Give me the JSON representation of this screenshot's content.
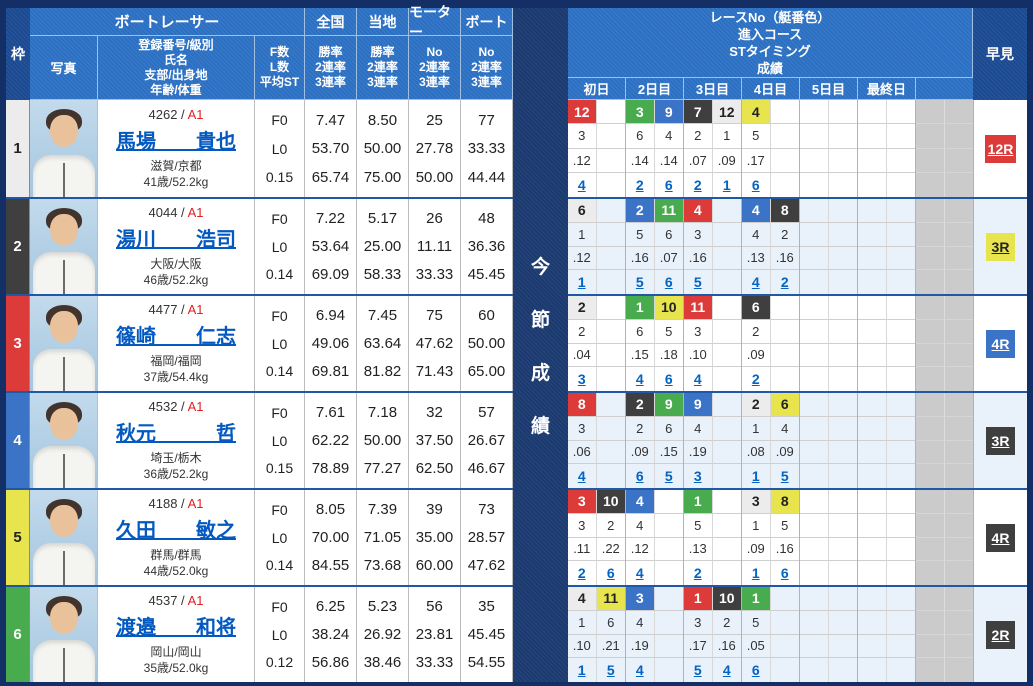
{
  "colors": {
    "boat": {
      "1": {
        "bg": "#ececec",
        "fg": "#222222"
      },
      "2": {
        "bg": "#3f3f3f",
        "fg": "#ffffff"
      },
      "3": {
        "bg": "#dd3a3a",
        "fg": "#ffffff"
      },
      "4": {
        "bg": "#3b74c6",
        "fg": "#ffffff"
      },
      "5": {
        "bg": "#e8e44e",
        "fg": "#222222"
      },
      "6": {
        "bg": "#48ab4d",
        "fg": "#ffffff"
      }
    },
    "link": "#0563c1",
    "header_blue": "#2b70c2",
    "dark_navy": "#132f66",
    "class_red": "#e01f1f",
    "alt_row": "#e9f1fb",
    "gray_cell": "#cbcbcb"
  },
  "header": {
    "waku": "枠",
    "racer_group": "ボートレーサー",
    "photo": "写真",
    "profile_lines": [
      "登録番号/級別",
      "氏名",
      "支部/出身地",
      "年齢/体重"
    ],
    "fl_lines": [
      "F数",
      "L数",
      "平均ST"
    ],
    "national": {
      "title": "全国",
      "lines": [
        "勝率",
        "2連率",
        "3連率"
      ]
    },
    "local": {
      "title": "当地",
      "lines": [
        "勝率",
        "2連率",
        "3連率"
      ]
    },
    "motor": {
      "title": "モーター",
      "lines": [
        "No",
        "2連率",
        "3連率"
      ]
    },
    "boat": {
      "title": "ボート",
      "lines": [
        "No",
        "2連率",
        "3連率"
      ]
    },
    "results_title_lines": [
      "レースNo（艇番色）",
      "進入コース",
      "STタイミング",
      "成績"
    ],
    "days": [
      "初日",
      "2日目",
      "3日目",
      "4日目",
      "5日目",
      "最終日",
      ""
    ],
    "series_label": "今節成績",
    "series_chars": [
      "今",
      "節",
      "成",
      "績"
    ],
    "hayami": "早見"
  },
  "racers": [
    {
      "frame": "1",
      "frame_boat": 1,
      "reg_no": "4262",
      "class": "A1",
      "name": "馬場　　貴也",
      "region": "滋賀/京都",
      "age_weight": "41歳/52.2kg",
      "f": "F0",
      "l": "L0",
      "avg_st": "0.15",
      "national": [
        "7.47",
        "53.70",
        "65.74"
      ],
      "local": [
        "8.50",
        "50.00",
        "75.00"
      ],
      "motor": [
        "25",
        "27.78",
        "50.00"
      ],
      "boat": [
        "77",
        "33.33",
        "44.44"
      ],
      "days": [
        [
          {
            "race": "12",
            "boat": 3,
            "course": "3",
            "st": ".12",
            "result": "4"
          }
        ],
        [
          {
            "race": "3",
            "boat": 6,
            "course": "6",
            "st": ".14",
            "result": "2"
          },
          {
            "race": "9",
            "boat": 4,
            "course": "4",
            "st": ".14",
            "result": "6"
          }
        ],
        [
          {
            "race": "7",
            "boat": 2,
            "course": "2",
            "st": ".07",
            "result": "2"
          },
          {
            "race": "12",
            "boat": 1,
            "course": "1",
            "st": ".09",
            "result": "1"
          }
        ],
        [
          {
            "race": "4",
            "boat": 5,
            "course": "5",
            "st": ".17",
            "result": "6"
          }
        ],
        [],
        []
      ],
      "hayami": {
        "label": "12R",
        "boat": 3
      }
    },
    {
      "frame": "2",
      "frame_boat": 2,
      "reg_no": "4044",
      "class": "A1",
      "name": "湯川　　浩司",
      "region": "大阪/大阪",
      "age_weight": "46歳/52.2kg",
      "f": "F0",
      "l": "L0",
      "avg_st": "0.14",
      "national": [
        "7.22",
        "53.64",
        "69.09"
      ],
      "local": [
        "5.17",
        "25.00",
        "58.33"
      ],
      "motor": [
        "26",
        "11.11",
        "33.33"
      ],
      "boat": [
        "48",
        "36.36",
        "45.45"
      ],
      "days": [
        [
          {
            "race": "6",
            "boat": 1,
            "course": "1",
            "st": ".12",
            "result": "1"
          }
        ],
        [
          {
            "race": "2",
            "boat": 4,
            "course": "5",
            "st": ".16",
            "result": "5"
          },
          {
            "race": "11",
            "boat": 6,
            "course": "6",
            "st": ".07",
            "result": "6"
          }
        ],
        [
          {
            "race": "4",
            "boat": 3,
            "course": "3",
            "st": ".16",
            "result": "5"
          }
        ],
        [
          {
            "race": "4",
            "boat": 4,
            "course": "4",
            "st": ".13",
            "result": "4"
          },
          {
            "race": "8",
            "boat": 2,
            "course": "2",
            "st": ".16",
            "result": "2"
          }
        ],
        [],
        []
      ],
      "hayami": {
        "label": "3R",
        "boat": 5
      }
    },
    {
      "frame": "3",
      "frame_boat": 3,
      "reg_no": "4477",
      "class": "A1",
      "name": "篠崎　　仁志",
      "region": "福岡/福岡",
      "age_weight": "37歳/54.4kg",
      "f": "F0",
      "l": "L0",
      "avg_st": "0.14",
      "national": [
        "6.94",
        "49.06",
        "69.81"
      ],
      "local": [
        "7.45",
        "63.64",
        "81.82"
      ],
      "motor": [
        "75",
        "47.62",
        "71.43"
      ],
      "boat": [
        "60",
        "50.00",
        "65.00"
      ],
      "days": [
        [
          {
            "race": "2",
            "boat": 1,
            "course": "2",
            "st": ".04",
            "result": "3"
          }
        ],
        [
          {
            "race": "1",
            "boat": 6,
            "course": "6",
            "st": ".15",
            "result": "4"
          },
          {
            "race": "10",
            "boat": 5,
            "course": "5",
            "st": ".18",
            "result": "6"
          }
        ],
        [
          {
            "race": "11",
            "boat": 3,
            "course": "3",
            "st": ".10",
            "result": "4"
          }
        ],
        [
          {
            "race": "6",
            "boat": 2,
            "course": "2",
            "st": ".09",
            "result": "2"
          }
        ],
        [],
        []
      ],
      "hayami": {
        "label": "4R",
        "boat": 4
      }
    },
    {
      "frame": "4",
      "frame_boat": 4,
      "reg_no": "4532",
      "class": "A1",
      "name": "秋元　　　哲",
      "region": "埼玉/栃木",
      "age_weight": "36歳/52.2kg",
      "f": "F0",
      "l": "L0",
      "avg_st": "0.15",
      "national": [
        "7.61",
        "62.22",
        "78.89"
      ],
      "local": [
        "7.18",
        "50.00",
        "77.27"
      ],
      "motor": [
        "32",
        "37.50",
        "62.50"
      ],
      "boat": [
        "57",
        "26.67",
        "46.67"
      ],
      "days": [
        [
          {
            "race": "8",
            "boat": 3,
            "course": "3",
            "st": ".06",
            "result": "4"
          }
        ],
        [
          {
            "race": "2",
            "boat": 2,
            "course": "2",
            "st": ".09",
            "result": "6"
          },
          {
            "race": "9",
            "boat": 6,
            "course": "6",
            "st": ".15",
            "result": "5"
          }
        ],
        [
          {
            "race": "9",
            "boat": 4,
            "course": "4",
            "st": ".19",
            "result": "3"
          }
        ],
        [
          {
            "race": "2",
            "boat": 1,
            "course": "1",
            "st": ".08",
            "result": "1"
          },
          {
            "race": "6",
            "boat": 5,
            "course": "4",
            "st": ".09",
            "result": "5"
          }
        ],
        [],
        []
      ],
      "hayami": {
        "label": "3R",
        "boat": 2
      }
    },
    {
      "frame": "5",
      "frame_boat": 5,
      "reg_no": "4188",
      "class": "A1",
      "name": "久田　　敏之",
      "region": "群馬/群馬",
      "age_weight": "44歳/52.0kg",
      "f": "F0",
      "l": "L0",
      "avg_st": "0.14",
      "national": [
        "8.05",
        "70.00",
        "84.55"
      ],
      "local": [
        "7.39",
        "71.05",
        "73.68"
      ],
      "motor": [
        "39",
        "35.00",
        "60.00"
      ],
      "boat": [
        "73",
        "28.57",
        "47.62"
      ],
      "days": [
        [
          {
            "race": "3",
            "boat": 3,
            "course": "3",
            "st": ".11",
            "result": "2"
          },
          {
            "race": "10",
            "boat": 2,
            "course": "2",
            "st": ".22",
            "result": "6"
          }
        ],
        [
          {
            "race": "4",
            "boat": 4,
            "course": "4",
            "st": ".12",
            "result": "4"
          }
        ],
        [
          {
            "race": "1",
            "boat": 6,
            "course": "5",
            "st": ".13",
            "result": "2"
          }
        ],
        [
          {
            "race": "3",
            "boat": 1,
            "course": "1",
            "st": ".09",
            "result": "1"
          },
          {
            "race": "8",
            "boat": 5,
            "course": "5",
            "st": ".16",
            "result": "6"
          }
        ],
        [],
        []
      ],
      "hayami": {
        "label": "4R",
        "boat": 2
      }
    },
    {
      "frame": "6",
      "frame_boat": 6,
      "reg_no": "4537",
      "class": "A1",
      "name": "渡邉　　和将",
      "region": "岡山/岡山",
      "age_weight": "35歳/52.0kg",
      "f": "F0",
      "l": "L0",
      "avg_st": "0.12",
      "national": [
        "6.25",
        "38.24",
        "56.86"
      ],
      "local": [
        "5.23",
        "26.92",
        "38.46"
      ],
      "motor": [
        "56",
        "23.81",
        "33.33"
      ],
      "boat": [
        "35",
        "45.45",
        "54.55"
      ],
      "days": [
        [
          {
            "race": "4",
            "boat": 1,
            "course": "1",
            "st": ".10",
            "result": "1"
          },
          {
            "race": "11",
            "boat": 5,
            "course": "6",
            "st": ".21",
            "result": "5"
          }
        ],
        [
          {
            "race": "3",
            "boat": 4,
            "course": "4",
            "st": ".19",
            "result": "4"
          }
        ],
        [
          {
            "race": "1",
            "boat": 3,
            "course": "3",
            "st": ".17",
            "result": "5"
          },
          {
            "race": "10",
            "boat": 2,
            "course": "2",
            "st": ".16",
            "result": "4"
          }
        ],
        [
          {
            "race": "1",
            "boat": 6,
            "course": "5",
            "st": ".05",
            "result": "6"
          }
        ],
        [],
        []
      ],
      "hayami": {
        "label": "2R",
        "boat": 2
      }
    }
  ]
}
